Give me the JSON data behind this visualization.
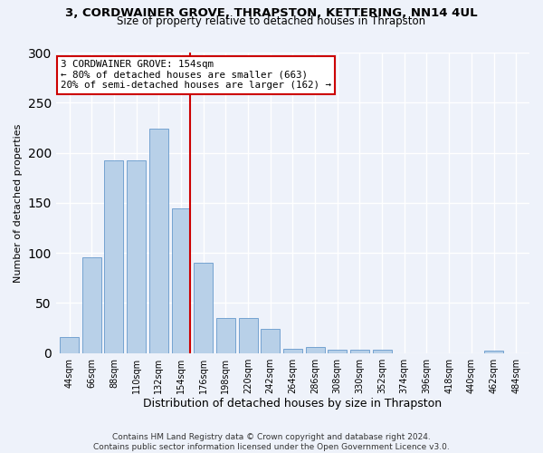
{
  "title": "3, CORDWAINER GROVE, THRAPSTON, KETTERING, NN14 4UL",
  "subtitle": "Size of property relative to detached houses in Thrapston",
  "xlabel": "Distribution of detached houses by size in Thrapston",
  "ylabel": "Number of detached properties",
  "bar_color": "#b8d0e8",
  "bar_edge_color": "#6699cc",
  "bin_labels": [
    "44sqm",
    "66sqm",
    "88sqm",
    "110sqm",
    "132sqm",
    "154sqm",
    "176sqm",
    "198sqm",
    "220sqm",
    "242sqm",
    "264sqm",
    "286sqm",
    "308sqm",
    "330sqm",
    "352sqm",
    "374sqm",
    "396sqm",
    "418sqm",
    "440sqm",
    "462sqm",
    "484sqm"
  ],
  "bar_values": [
    16,
    96,
    192,
    192,
    224,
    144,
    90,
    35,
    35,
    24,
    4,
    6,
    3,
    3,
    3,
    0,
    0,
    0,
    0,
    2,
    0
  ],
  "annotation_text": "3 CORDWAINER GROVE: 154sqm\n← 80% of detached houses are smaller (663)\n20% of semi-detached houses are larger (162) →",
  "annotation_box_color": "#ffffff",
  "annotation_box_edge_color": "#cc0000",
  "vline_color": "#cc0000",
  "ylim": [
    0,
    300
  ],
  "yticks": [
    0,
    50,
    100,
    150,
    200,
    250,
    300
  ],
  "background_color": "#eef2fa",
  "grid_color": "#ffffff",
  "footer": "Contains HM Land Registry data © Crown copyright and database right 2024.\nContains public sector information licensed under the Open Government Licence v3.0."
}
